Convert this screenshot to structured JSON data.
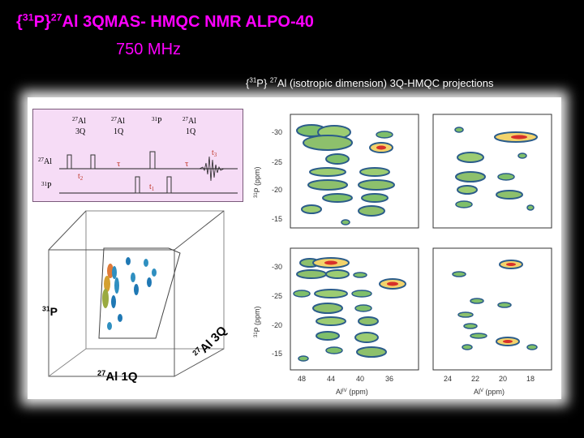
{
  "slide": {
    "title_brace_open": "{",
    "title_p_mass": "31",
    "title_p": "P}",
    "title_al_mass": "27",
    "title_rest": "Al 3QMAS- HMQC NMR ALPO-40",
    "subtitle": "750 MHz",
    "caption_brace": "{",
    "caption_p_mass": "31",
    "caption_p": "P} ",
    "caption_al_mass": "27",
    "caption_rest": "Al (isotropic dimension) 3Q-HMQC projections"
  },
  "pulse_sequence": {
    "header_al_mass_1": "27",
    "header_al_1": "Al",
    "header_3q": "3Q",
    "header_al_mass_2": "27",
    "header_al_2": "Al",
    "header_1q": "1Q",
    "header_p_mass": "31",
    "header_p": "P",
    "header_al_mass_3": "27",
    "header_al_3": "Al",
    "header_1q_b": "1Q",
    "channel_al_mass": "27",
    "channel_al": "Al",
    "channel_p_mass": "31",
    "channel_p": "P",
    "t2": "t",
    "t2_sub": "2",
    "tau1": "τ",
    "tau2": "τ",
    "t3": "t",
    "t3_sub": "3",
    "t1": "t",
    "t1_sub": "1",
    "color_timing": "#c0392b"
  },
  "cube": {
    "label_p_mass": "31",
    "label_p": "P",
    "label_al1q_mass": "27",
    "label_al1q": "Al 1Q",
    "label_al3q_mass": "27",
    "label_al3q": "Al 3Q"
  },
  "spectra": {
    "y_axis_label_mass": "31",
    "y_axis_label": "P (ppm)",
    "y_ticks": [
      "-30",
      "-25",
      "-20",
      "-15"
    ],
    "x_ticks_left": [
      "48",
      "44",
      "40",
      "36"
    ],
    "x_ticks_right": [
      "24",
      "22",
      "20",
      "18"
    ],
    "x_label_left": "Al",
    "x_label_left_sup": "IV",
    "x_label_left_unit": "(ppm)",
    "x_label_right": "Al",
    "x_label_right_sup": "V",
    "x_label_right_unit": "(ppm)"
  }
}
